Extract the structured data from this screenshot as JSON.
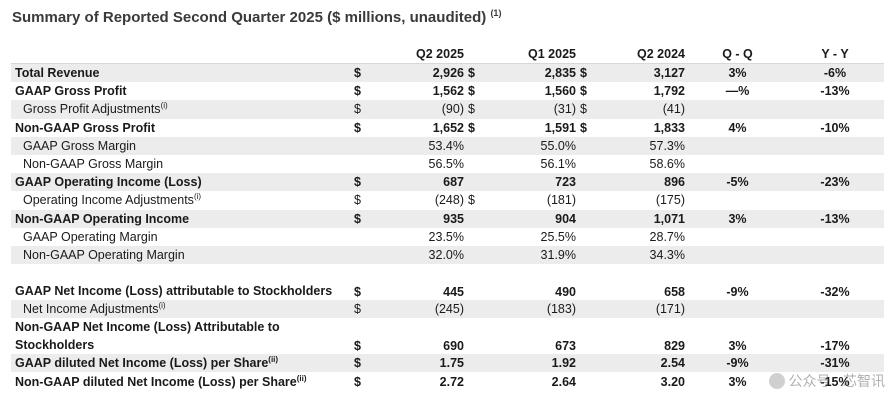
{
  "title": "Summary of Reported Second Quarter 2025 ($ millions, unaudited)",
  "title_note": "(1)",
  "columns": [
    "Q2 2025",
    "Q1 2025",
    "Q2 2024",
    "Q - Q",
    "Y - Y"
  ],
  "rows": [
    {
      "label": "Total Revenue",
      "sup": "",
      "bold": true,
      "shade": true,
      "indent": false,
      "tall": false,
      "cur": [
        "$",
        "$",
        "$"
      ],
      "v": [
        "2,926",
        "2,835",
        "3,127"
      ],
      "qq": "3%",
      "yy": "-6%"
    },
    {
      "label": "GAAP Gross Profit",
      "sup": "",
      "bold": true,
      "shade": false,
      "indent": false,
      "tall": false,
      "cur": [
        "$",
        "$",
        "$"
      ],
      "v": [
        "1,562",
        "1,560",
        "1,792"
      ],
      "qq": "—%",
      "yy": "-13%"
    },
    {
      "label": "Gross Profit Adjustments",
      "sup": "(i)",
      "bold": false,
      "shade": true,
      "indent": true,
      "tall": false,
      "cur": [
        "$",
        "$",
        "$"
      ],
      "v": [
        "(90)",
        "(31)",
        "(41)"
      ],
      "qq": "",
      "yy": ""
    },
    {
      "label": "Non-GAAP Gross Profit",
      "sup": "",
      "bold": true,
      "shade": false,
      "indent": false,
      "tall": false,
      "cur": [
        "$",
        "$",
        "$"
      ],
      "v": [
        "1,652",
        "1,591",
        "1,833"
      ],
      "qq": "4%",
      "yy": "-10%"
    },
    {
      "label": "GAAP Gross Margin",
      "sup": "",
      "bold": false,
      "shade": true,
      "indent": true,
      "tall": false,
      "cur": [
        "",
        "",
        ""
      ],
      "v": [
        "53.4%",
        "55.0%",
        "57.3%"
      ],
      "qq": "",
      "yy": ""
    },
    {
      "label": "Non-GAAP Gross Margin",
      "sup": "",
      "bold": false,
      "shade": false,
      "indent": true,
      "tall": false,
      "cur": [
        "",
        "",
        ""
      ],
      "v": [
        "56.5%",
        "56.1%",
        "58.6%"
      ],
      "qq": "",
      "yy": ""
    },
    {
      "label": "GAAP Operating Income (Loss)",
      "sup": "",
      "bold": true,
      "shade": true,
      "indent": false,
      "tall": false,
      "cur": [
        "$",
        "",
        ""
      ],
      "v": [
        "687",
        "723",
        "896"
      ],
      "qq": "-5%",
      "yy": "-23%"
    },
    {
      "label": "Operating Income Adjustments",
      "sup": "(i)",
      "bold": false,
      "shade": false,
      "indent": true,
      "tall": false,
      "cur": [
        "$",
        "$",
        ""
      ],
      "v": [
        "(248)",
        "(181)",
        "(175)"
      ],
      "qq": "",
      "yy": ""
    },
    {
      "label": "Non-GAAP Operating Income",
      "sup": "",
      "bold": true,
      "shade": true,
      "indent": false,
      "tall": false,
      "cur": [
        "$",
        "",
        ""
      ],
      "v": [
        "935",
        "904",
        "1,071"
      ],
      "qq": "3%",
      "yy": "-13%"
    },
    {
      "label": "GAAP Operating Margin",
      "sup": "",
      "bold": false,
      "shade": false,
      "indent": true,
      "tall": false,
      "cur": [
        "",
        "",
        ""
      ],
      "v": [
        "23.5%",
        "25.5%",
        "28.7%"
      ],
      "qq": "",
      "yy": ""
    },
    {
      "label": "Non-GAAP Operating Margin",
      "sup": "",
      "bold": false,
      "shade": true,
      "indent": true,
      "tall": false,
      "cur": [
        "",
        "",
        ""
      ],
      "v": [
        "32.0%",
        "31.9%",
        "34.3%"
      ],
      "qq": "",
      "yy": ""
    },
    {
      "label": "GAAP Net Income (Loss) attributable to Stockholders",
      "sup": "",
      "bold": true,
      "shade": false,
      "indent": false,
      "tall": true,
      "cur": [
        "$",
        "",
        ""
      ],
      "v": [
        "445",
        "490",
        "658"
      ],
      "qq": "-9%",
      "yy": "-32%"
    },
    {
      "label": "Net Income Adjustments",
      "sup": "(i)",
      "bold": false,
      "shade": true,
      "indent": true,
      "tall": false,
      "cur": [
        "$",
        "",
        ""
      ],
      "v": [
        "(245)",
        "(183)",
        "(171)"
      ],
      "qq": "",
      "yy": ""
    },
    {
      "label": "Non-GAAP Net Income (Loss) Attributable to Stockholders",
      "sup": "",
      "bold": true,
      "shade": false,
      "indent": false,
      "tall": true,
      "cur": [
        "$",
        "",
        ""
      ],
      "v": [
        "690",
        "673",
        "829"
      ],
      "qq": "3%",
      "yy": "-17%"
    },
    {
      "label": "GAAP diluted Net Income (Loss) per Share",
      "sup": "(ii)",
      "bold": true,
      "shade": true,
      "indent": false,
      "tall": false,
      "cur": [
        "$",
        "",
        ""
      ],
      "v": [
        "1.75",
        "1.92",
        "2.54"
      ],
      "qq": "-9%",
      "yy": "-31%"
    },
    {
      "label": "Non-GAAP diluted Net Income (Loss) per Share",
      "sup": "(ii)",
      "bold": true,
      "shade": false,
      "indent": false,
      "tall": false,
      "cur": [
        "$",
        "",
        ""
      ],
      "v": [
        "2.72",
        "2.64",
        "3.20"
      ],
      "qq": "3%",
      "yy": "-15%"
    }
  ],
  "watermark": "公众号 · 芯智讯"
}
